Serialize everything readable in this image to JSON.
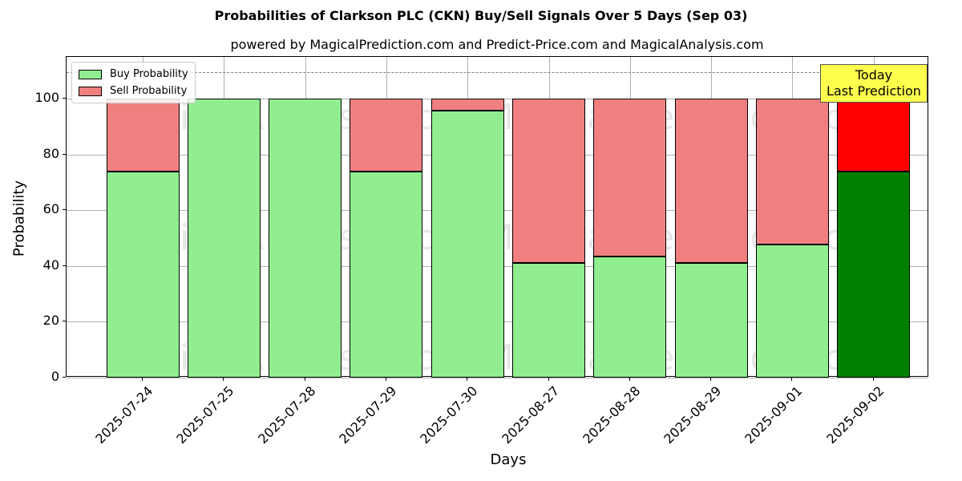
{
  "header": {
    "title": "Probabilities of Clarkson PLC (CKN) Buy/Sell Signals Over 5 Days (Sep 03)",
    "subtitle": "powered by MagicalPrediction.com and Predict-Price.com and MagicalAnalysis.com"
  },
  "legend": {
    "buy_label": "Buy Probability",
    "sell_label": "Sell Probability"
  },
  "annotation": {
    "line1": "Today",
    "line2": "Last Prediction"
  },
  "axes": {
    "xlabel": "Days",
    "ylabel": "Probability",
    "yticks": [
      "0",
      "20",
      "40",
      "60",
      "80",
      "100"
    ]
  },
  "watermarks": [
    "MagicalAnalysis.com",
    "MagicalPrediction.com"
  ],
  "colors": {
    "buy": "#90ee90",
    "sell": "#f08080",
    "buy_today": "#008000",
    "sell_today": "#ff0000",
    "annotation_bg": "#ffff4d"
  },
  "chart_data": {
    "type": "bar",
    "stacked": true,
    "title": "Probabilities of Clarkson PLC (CKN) Buy/Sell Signals Over 5 Days (Sep 03)",
    "subtitle": "powered by MagicalPrediction.com and Predict-Price.com and MagicalAnalysis.com",
    "xlabel": "Days",
    "ylabel": "Probability",
    "ylim": [
      0,
      115
    ],
    "yticks": [
      0,
      20,
      40,
      60,
      80,
      100
    ],
    "reference_line": 110,
    "grid": true,
    "legend_position": "upper left",
    "categories": [
      "2025-07-24",
      "2025-07-25",
      "2025-07-28",
      "2025-07-29",
      "2025-07-30",
      "2025-08-27",
      "2025-08-28",
      "2025-08-29",
      "2025-09-01",
      "2025-09-02"
    ],
    "series": [
      {
        "name": "Buy Probability",
        "values": [
          74.0,
          100.0,
          100.0,
          74.0,
          95.7,
          41.0,
          43.3,
          41.0,
          47.7,
          74.0
        ]
      },
      {
        "name": "Sell Probability",
        "values": [
          26.0,
          0.0,
          0.0,
          26.0,
          4.3,
          59.0,
          56.7,
          59.0,
          52.3,
          26.0
        ]
      }
    ],
    "annotations": [
      {
        "text": "Today\nLast Prediction",
        "x": "2025-09-02"
      }
    ]
  }
}
